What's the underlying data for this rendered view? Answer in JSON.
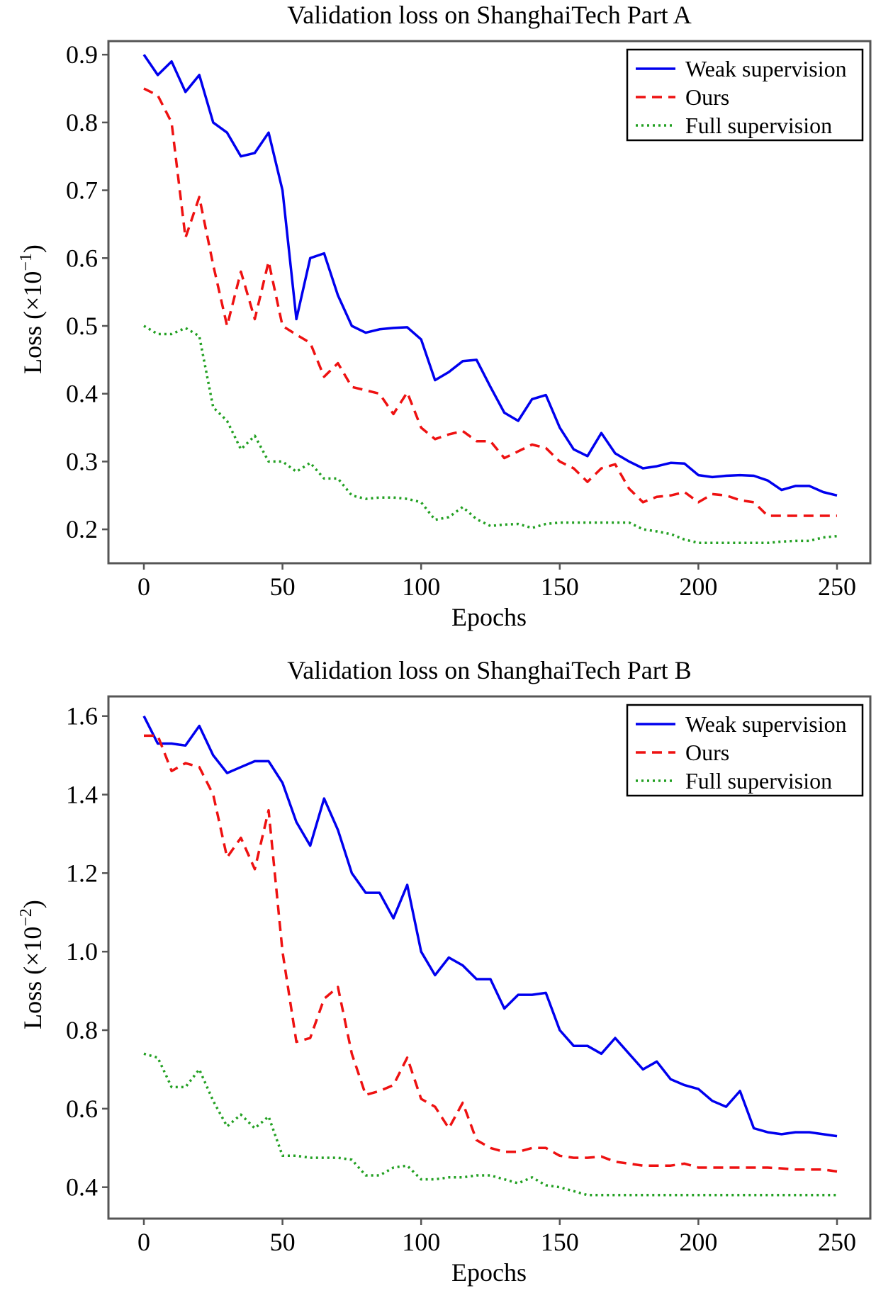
{
  "chart_data": [
    {
      "type": "line",
      "title": "Validation loss on ShanghaiTech Part A",
      "xlabel": "Epochs",
      "ylabel_main": "Loss (×10",
      "ylabel_exp": "−1",
      "ylabel_close": ")",
      "xlim": [
        0,
        250
      ],
      "ylim": [
        0.15,
        0.92
      ],
      "xticks": [
        0,
        50,
        100,
        150,
        200,
        250
      ],
      "yticks": [
        0.2,
        0.3,
        0.4,
        0.5,
        0.6,
        0.7,
        0.8,
        0.9
      ],
      "x_tick_labels": [
        "0",
        "50",
        "100",
        "150",
        "200",
        "250"
      ],
      "y_tick_labels": [
        "0.2",
        "0.3",
        "0.4",
        "0.5",
        "0.6",
        "0.7",
        "0.8",
        "0.9"
      ],
      "grid": false,
      "legend_position": "top-right",
      "x": [
        0,
        5,
        10,
        15,
        20,
        25,
        30,
        35,
        40,
        45,
        50,
        55,
        60,
        65,
        70,
        75,
        80,
        85,
        90,
        95,
        100,
        105,
        110,
        115,
        120,
        125,
        130,
        135,
        140,
        145,
        150,
        155,
        160,
        165,
        170,
        175,
        180,
        185,
        190,
        195,
        200,
        205,
        210,
        215,
        220,
        225,
        230,
        235,
        240,
        245,
        250
      ],
      "series": [
        {
          "name": "Weak supervision",
          "color": "#0000ee",
          "style": "solid",
          "values": [
            0.9,
            0.87,
            0.89,
            0.845,
            0.87,
            0.8,
            0.785,
            0.75,
            0.755,
            0.785,
            0.7,
            0.51,
            0.6,
            0.607,
            0.545,
            0.5,
            0.49,
            0.495,
            0.497,
            0.498,
            0.48,
            0.42,
            0.432,
            0.448,
            0.45,
            0.41,
            0.372,
            0.36,
            0.392,
            0.398,
            0.35,
            0.318,
            0.308,
            0.342,
            0.312,
            0.3,
            0.29,
            0.293,
            0.298,
            0.297,
            0.28,
            0.277,
            0.279,
            0.28,
            0.279,
            0.272,
            0.258,
            0.264,
            0.264,
            0.255,
            0.25
          ]
        },
        {
          "name": "Ours",
          "color": "#ee1111",
          "style": "dashed",
          "values": [
            0.85,
            0.84,
            0.8,
            0.63,
            0.69,
            0.59,
            0.5,
            0.58,
            0.51,
            0.595,
            0.5,
            0.487,
            0.475,
            0.425,
            0.445,
            0.41,
            0.405,
            0.4,
            0.37,
            0.402,
            0.35,
            0.333,
            0.34,
            0.345,
            0.33,
            0.33,
            0.305,
            0.315,
            0.325,
            0.32,
            0.3,
            0.29,
            0.27,
            0.29,
            0.296,
            0.26,
            0.24,
            0.248,
            0.25,
            0.255,
            0.24,
            0.252,
            0.25,
            0.243,
            0.24,
            0.22,
            0.22,
            0.22,
            0.22,
            0.22,
            0.22
          ]
        },
        {
          "name": "Full supervision",
          "color": "#22a022",
          "style": "dotted",
          "values": [
            0.5,
            0.488,
            0.488,
            0.497,
            0.485,
            0.38,
            0.36,
            0.318,
            0.338,
            0.3,
            0.3,
            0.285,
            0.298,
            0.275,
            0.275,
            0.25,
            0.245,
            0.247,
            0.247,
            0.245,
            0.24,
            0.214,
            0.218,
            0.233,
            0.215,
            0.205,
            0.207,
            0.208,
            0.202,
            0.208,
            0.21,
            0.21,
            0.21,
            0.21,
            0.21,
            0.21,
            0.2,
            0.197,
            0.193,
            0.185,
            0.18,
            0.18,
            0.18,
            0.18,
            0.18,
            0.18,
            0.182,
            0.183,
            0.183,
            0.188,
            0.19
          ]
        }
      ]
    },
    {
      "type": "line",
      "title": "Validation loss on ShanghaiTech Part B",
      "xlabel": "Epochs",
      "ylabel_main": "Loss (×10",
      "ylabel_exp": "−2",
      "ylabel_close": ")",
      "xlim": [
        0,
        250
      ],
      "ylim": [
        0.32,
        1.65
      ],
      "xticks": [
        0,
        50,
        100,
        150,
        200,
        250
      ],
      "yticks": [
        0.4,
        0.6,
        0.8,
        1.0,
        1.2,
        1.4,
        1.6
      ],
      "x_tick_labels": [
        "0",
        "50",
        "100",
        "150",
        "200",
        "250"
      ],
      "y_tick_labels": [
        "0.4",
        "0.6",
        "0.8",
        "1.0",
        "1.2",
        "1.4",
        "1.6"
      ],
      "grid": false,
      "legend_position": "top-right",
      "x": [
        0,
        5,
        10,
        15,
        20,
        25,
        30,
        35,
        40,
        45,
        50,
        55,
        60,
        65,
        70,
        75,
        80,
        85,
        90,
        95,
        100,
        105,
        110,
        115,
        120,
        125,
        130,
        135,
        140,
        145,
        150,
        155,
        160,
        165,
        170,
        175,
        180,
        185,
        190,
        195,
        200,
        205,
        210,
        215,
        220,
        225,
        230,
        235,
        240,
        245,
        250
      ],
      "series": [
        {
          "name": "Weak supervision",
          "color": "#0000ee",
          "style": "solid",
          "values": [
            1.6,
            1.53,
            1.53,
            1.525,
            1.575,
            1.5,
            1.455,
            1.47,
            1.485,
            1.485,
            1.43,
            1.33,
            1.27,
            1.39,
            1.31,
            1.2,
            1.15,
            1.15,
            1.085,
            1.17,
            1.0,
            0.94,
            0.985,
            0.965,
            0.93,
            0.93,
            0.855,
            0.89,
            0.89,
            0.895,
            0.8,
            0.76,
            0.76,
            0.74,
            0.78,
            0.74,
            0.7,
            0.72,
            0.675,
            0.66,
            0.65,
            0.62,
            0.605,
            0.645,
            0.55,
            0.54,
            0.535,
            0.54,
            0.54,
            0.535,
            0.53
          ]
        },
        {
          "name": "Ours",
          "color": "#ee1111",
          "style": "dashed",
          "values": [
            1.55,
            1.55,
            1.46,
            1.48,
            1.47,
            1.4,
            1.24,
            1.29,
            1.21,
            1.36,
            1.0,
            0.77,
            0.78,
            0.88,
            0.91,
            0.74,
            0.635,
            0.645,
            0.66,
            0.73,
            0.625,
            0.605,
            0.55,
            0.615,
            0.52,
            0.5,
            0.49,
            0.49,
            0.5,
            0.5,
            0.48,
            0.475,
            0.475,
            0.478,
            0.465,
            0.46,
            0.455,
            0.455,
            0.455,
            0.46,
            0.45,
            0.45,
            0.45,
            0.45,
            0.45,
            0.45,
            0.448,
            0.445,
            0.445,
            0.445,
            0.44
          ]
        },
        {
          "name": "Full supervision",
          "color": "#22a022",
          "style": "dotted",
          "values": [
            0.74,
            0.73,
            0.655,
            0.655,
            0.7,
            0.62,
            0.555,
            0.585,
            0.55,
            0.58,
            0.48,
            0.48,
            0.475,
            0.475,
            0.475,
            0.47,
            0.43,
            0.43,
            0.45,
            0.455,
            0.42,
            0.42,
            0.425,
            0.425,
            0.43,
            0.43,
            0.42,
            0.41,
            0.425,
            0.405,
            0.4,
            0.39,
            0.38,
            0.38,
            0.38,
            0.38,
            0.38,
            0.38,
            0.38,
            0.38,
            0.38,
            0.38,
            0.38,
            0.38,
            0.38,
            0.38,
            0.38,
            0.38,
            0.38,
            0.38,
            0.38
          ]
        }
      ]
    }
  ]
}
